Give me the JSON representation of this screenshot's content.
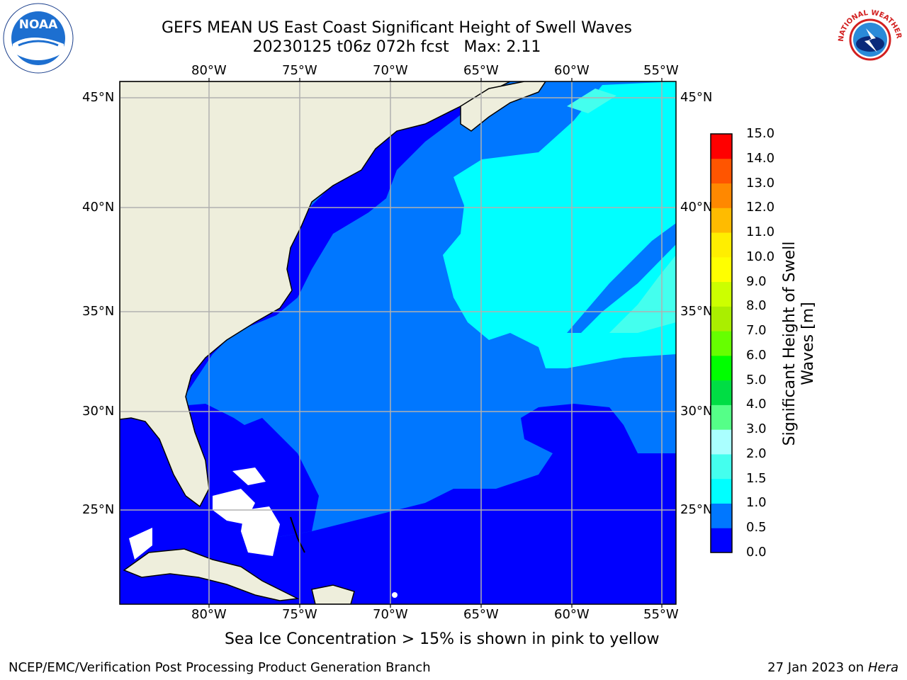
{
  "title": {
    "line1": "GEFS MEAN US East Coast Significant Height of Swell Waves",
    "line2": "20230125 t06z 072h fcst   Max: 2.11"
  },
  "logos": {
    "noaa_text": "NOAA",
    "nws_text": "NATIONAL WEATHER SERVICE"
  },
  "map": {
    "lon_ticks": [
      "80°W",
      "75°W",
      "70°W",
      "65°W",
      "60°W",
      "55°W"
    ],
    "lat_ticks": [
      "45°N",
      "40°N",
      "35°N",
      "30°N",
      "25°N"
    ],
    "lon_range": [
      -85,
      -54.2
    ],
    "lat_range": [
      20.5,
      46
    ],
    "colors": {
      "land": "#eeeedc",
      "band_0_0.5": "#0000ff",
      "band_0.5_1.0": "#0077ff",
      "band_1.0_1.5": "#00ffff",
      "band_1.5_2.0": "#44ffee",
      "grid": "#b0b0b0"
    }
  },
  "colorbar": {
    "label": "Significant Height of Swell Waves [m]",
    "ticks": [
      "15.0",
      "14.0",
      "13.0",
      "12.0",
      "11.0",
      "10.0",
      "9.0",
      "8.0",
      "7.0",
      "6.0",
      "5.0",
      "4.0",
      "3.0",
      "2.0",
      "1.5",
      "1.0",
      "0.5",
      "0.0"
    ],
    "colors_bottom_to_top": [
      "#0000ff",
      "#0077ff",
      "#00ffff",
      "#44ffee",
      "#aaffff",
      "#55ff88",
      "#00dd44",
      "#00ff00",
      "#66ff00",
      "#aaee00",
      "#ccff00",
      "#ffff00",
      "#ffee00",
      "#ffbb00",
      "#ff8800",
      "#ff5500",
      "#ff0000"
    ]
  },
  "caption": "Sea Ice Concentration > 15% is shown in pink to yellow",
  "footer": {
    "left": "NCEP/EMC/Verification Post Processing Product Generation Branch",
    "right_prefix": "27 Jan 2023 on ",
    "right_machine": "Hera"
  }
}
